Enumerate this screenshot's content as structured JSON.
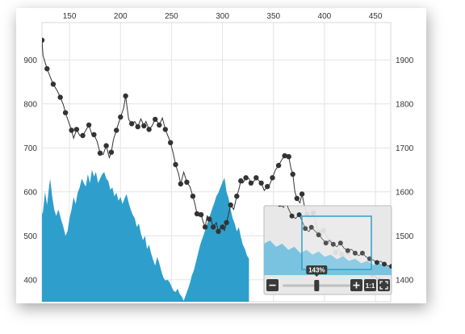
{
  "chart_data": {
    "type": "line",
    "grid": true,
    "x_ticks": [
      150,
      200,
      250,
      300,
      350,
      400,
      450
    ],
    "xlim": [
      123,
      465
    ],
    "left_axis": {
      "ticks": [
        400,
        500,
        600,
        700,
        800,
        900
      ],
      "ylim": [
        350,
        985
      ],
      "series_name": "",
      "series_style": "line with circle markers",
      "points": [
        [
          123,
          945
        ],
        [
          124,
          910
        ],
        [
          128,
          880
        ],
        [
          131,
          862
        ],
        [
          134,
          845
        ],
        [
          138,
          830
        ],
        [
          141,
          815
        ],
        [
          144,
          798
        ],
        [
          146,
          780
        ],
        [
          149,
          760
        ],
        [
          152,
          740
        ],
        [
          154,
          722
        ],
        [
          157,
          742
        ],
        [
          160,
          728
        ],
        [
          163,
          728
        ],
        [
          166,
          740
        ],
        [
          169,
          752
        ],
        [
          172,
          730
        ],
        [
          174,
          730
        ],
        [
          177,
          715
        ],
        [
          180,
          688
        ],
        [
          183,
          685
        ],
        [
          186,
          705
        ],
        [
          189,
          678
        ],
        [
          191,
          690
        ],
        [
          193,
          718
        ],
        [
          196,
          740
        ],
        [
          198,
          755
        ],
        [
          200,
          770
        ],
        [
          203,
          790
        ],
        [
          205,
          818
        ],
        [
          208,
          765
        ],
        [
          211,
          755
        ],
        [
          214,
          760
        ],
        [
          217,
          748
        ],
        [
          220,
          766
        ],
        [
          223,
          750
        ],
        [
          225,
          760
        ],
        [
          228,
          742
        ],
        [
          231,
          750
        ],
        [
          234,
          765
        ],
        [
          236,
          760
        ],
        [
          238,
          752
        ],
        [
          241,
          768
        ],
        [
          244,
          742
        ],
        [
          246,
          730
        ],
        [
          249,
          712
        ],
        [
          252,
          685
        ],
        [
          254,
          662
        ],
        [
          257,
          640
        ],
        [
          259,
          618
        ],
        [
          262,
          645
        ],
        [
          265,
          622
        ],
        [
          268,
          612
        ],
        [
          271,
          590
        ],
        [
          273,
          572
        ],
        [
          275,
          550
        ],
        [
          277,
          545
        ],
        [
          279,
          548
        ],
        [
          281,
          532
        ],
        [
          283,
          520
        ],
        [
          285,
          545
        ],
        [
          287,
          538
        ],
        [
          289,
          535
        ],
        [
          291,
          520
        ],
        [
          294,
          530
        ],
        [
          296,
          510
        ],
        [
          298,
          518
        ],
        [
          300,
          520
        ],
        [
          302,
          512
        ],
        [
          304,
          530
        ],
        [
          306,
          550
        ],
        [
          308,
          570
        ],
        [
          311,
          560
        ],
        [
          314,
          590
        ],
        [
          316,
          605
        ],
        [
          318,
          625
        ],
        [
          320,
          620
        ],
        [
          323,
          632
        ],
        [
          326,
          630
        ],
        [
          328,
          620
        ],
        [
          330,
          622
        ],
        [
          333,
          632
        ],
        [
          336,
          625
        ],
        [
          338,
          620
        ],
        [
          341,
          603
        ],
        [
          344,
          612
        ],
        [
          346,
          615
        ],
        [
          349,
          632
        ],
        [
          352,
          650
        ],
        [
          355,
          660
        ],
        [
          358,
          672
        ],
        [
          361,
          682
        ],
        [
          363,
          685
        ],
        [
          365,
          680
        ],
        [
          367,
          655
        ],
        [
          369,
          640
        ],
        [
          371,
          600
        ],
        [
          373,
          585
        ],
        [
          376,
          575
        ],
        [
          378,
          595
        ],
        [
          380,
          572
        ],
        [
          383,
          548
        ],
        [
          386,
          540
        ],
        [
          389,
          552
        ],
        [
          391,
          535
        ],
        [
          394,
          508
        ],
        [
          397,
          498
        ],
        [
          399,
          512
        ],
        [
          402,
          500
        ],
        [
          405,
          488
        ],
        [
          408,
          475
        ],
        [
          411,
          462
        ],
        [
          414,
          470
        ],
        [
          417,
          458
        ],
        [
          420,
          450
        ],
        [
          423,
          462
        ],
        [
          426,
          445
        ],
        [
          429,
          438
        ],
        [
          432,
          442
        ],
        [
          435,
          430
        ],
        [
          438,
          422
        ],
        [
          441,
          430
        ],
        [
          444,
          418
        ],
        [
          447,
          412
        ],
        [
          450,
          408
        ],
        [
          453,
          400
        ],
        [
          456,
          404
        ],
        [
          459,
          395
        ],
        [
          462,
          390
        ],
        [
          465,
          388
        ]
      ]
    },
    "right_axis": {
      "ticks": [
        1400,
        1500,
        1600,
        1700,
        1800,
        1900
      ],
      "ylim": [
        1350,
        1985
      ],
      "series_name": "",
      "series_style": "filled area",
      "color": "#2e9fcc",
      "points": [
        [
          123,
          1548
        ],
        [
          124,
          1555
        ],
        [
          126,
          1600
        ],
        [
          128,
          1570
        ],
        [
          130,
          1612
        ],
        [
          131,
          1630
        ],
        [
          133,
          1590
        ],
        [
          135,
          1560
        ],
        [
          137,
          1545
        ],
        [
          139,
          1560
        ],
        [
          140,
          1552
        ],
        [
          142,
          1535
        ],
        [
          144,
          1520
        ],
        [
          146,
          1500
        ],
        [
          148,
          1510
        ],
        [
          150,
          1540
        ],
        [
          152,
          1560
        ],
        [
          154,
          1588
        ],
        [
          156,
          1572
        ],
        [
          158,
          1598
        ],
        [
          160,
          1610
        ],
        [
          162,
          1630
        ],
        [
          164,
          1620
        ],
        [
          166,
          1612
        ],
        [
          168,
          1640
        ],
        [
          170,
          1620
        ],
        [
          172,
          1650
        ],
        [
          174,
          1635
        ],
        [
          176,
          1645
        ],
        [
          178,
          1620
        ],
        [
          180,
          1630
        ],
        [
          182,
          1640
        ],
        [
          184,
          1645
        ],
        [
          186,
          1630
        ],
        [
          188,
          1625
        ],
        [
          190,
          1605
        ],
        [
          192,
          1610
        ],
        [
          194,
          1590
        ],
        [
          196,
          1598
        ],
        [
          198,
          1580
        ],
        [
          200,
          1588
        ],
        [
          202,
          1572
        ],
        [
          204,
          1585
        ],
        [
          206,
          1595
        ],
        [
          208,
          1575
        ],
        [
          210,
          1560
        ],
        [
          212,
          1548
        ],
        [
          214,
          1540
        ],
        [
          216,
          1520
        ],
        [
          218,
          1528
        ],
        [
          220,
          1505
        ],
        [
          222,
          1490
        ],
        [
          224,
          1500
        ],
        [
          226,
          1470
        ],
        [
          228,
          1480
        ],
        [
          230,
          1460
        ],
        [
          232,
          1445
        ],
        [
          234,
          1432
        ],
        [
          236,
          1452
        ],
        [
          238,
          1438
        ],
        [
          240,
          1420
        ],
        [
          242,
          1405
        ],
        [
          244,
          1398
        ],
        [
          246,
          1400
        ],
        [
          248,
          1395
        ],
        [
          250,
          1385
        ],
        [
          252,
          1375
        ],
        [
          254,
          1372
        ],
        [
          256,
          1380
        ],
        [
          258,
          1368
        ],
        [
          260,
          1362
        ],
        [
          262,
          1352
        ],
        [
          264,
          1365
        ],
        [
          266,
          1378
        ],
        [
          268,
          1392
        ],
        [
          270,
          1410
        ],
        [
          272,
          1422
        ],
        [
          274,
          1440
        ],
        [
          276,
          1460
        ],
        [
          278,
          1478
        ],
        [
          280,
          1492
        ],
        [
          282,
          1505
        ],
        [
          284,
          1520
        ],
        [
          286,
          1535
        ],
        [
          288,
          1548
        ],
        [
          290,
          1562
        ],
        [
          292,
          1575
        ],
        [
          294,
          1590
        ],
        [
          296,
          1598
        ],
        [
          298,
          1610
        ],
        [
          300,
          1622
        ],
        [
          302,
          1632
        ],
        [
          304,
          1600
        ],
        [
          306,
          1585
        ],
        [
          308,
          1560
        ],
        [
          310,
          1540
        ],
        [
          312,
          1528
        ],
        [
          314,
          1510
        ],
        [
          316,
          1520
        ],
        [
          318,
          1498
        ],
        [
          320,
          1480
        ],
        [
          322,
          1470
        ],
        [
          324,
          1455
        ],
        [
          326,
          1448
        ]
      ]
    }
  },
  "navigator": {
    "zoom_label": "143%",
    "zoom_level": 0.46,
    "zoom_out_icon": "minus-icon",
    "zoom_in_icon": "plus-icon",
    "reset_label": "1:1",
    "fullscreen_icon": "expand-icon",
    "colors": {
      "track": "#bfbfbf",
      "button": "#3a3a3a",
      "panel": "#e6e6e6",
      "window": "#7ac3e0"
    }
  }
}
